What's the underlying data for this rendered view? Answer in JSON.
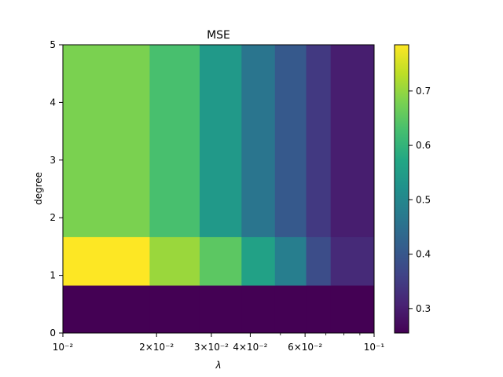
{
  "chart_data": {
    "type": "heatmap",
    "title": "MSE",
    "xlabel": "λ",
    "ylabel": "degree",
    "xscale": "log",
    "xlim": [
      0.01,
      0.1
    ],
    "ylim": [
      0,
      5
    ],
    "x_edges": [
      0.01,
      0.019,
      0.0275,
      0.0375,
      0.048,
      0.0605,
      0.0725,
      0.1
    ],
    "y_edges": [
      0,
      0.83,
      1.67,
      5
    ],
    "x_ticks": [
      {
        "value": 0.01,
        "label": "10⁻²"
      },
      {
        "value": 0.02,
        "label": "2×10⁻²"
      },
      {
        "value": 0.03,
        "label": "3×10⁻²"
      },
      {
        "value": 0.04,
        "label": "4×10⁻²"
      },
      {
        "value": 0.06,
        "label": "6×10⁻²"
      },
      {
        "value": 0.1,
        "label": "10⁻¹"
      }
    ],
    "x_minor_ticks": [
      0.05,
      0.07,
      0.08,
      0.09
    ],
    "y_ticks": [
      0,
      1,
      2,
      3,
      4,
      5
    ],
    "values": [
      [
        0.255,
        0.255,
        0.255,
        0.255,
        0.255,
        0.255,
        0.255
      ],
      [
        0.785,
        0.705,
        0.65,
        0.56,
        0.48,
        0.38,
        0.32
      ],
      [
        0.68,
        0.63,
        0.54,
        0.46,
        0.405,
        0.345,
        0.3
      ]
    ],
    "colorbar": {
      "vmin": 0.255,
      "vmax": 0.785,
      "ticks": [
        0.3,
        0.4,
        0.5,
        0.6,
        0.7
      ],
      "tick_labels": [
        "0.3",
        "0.4",
        "0.5",
        "0.6",
        "0.7"
      ],
      "colormap": "viridis"
    },
    "background_cell_color": "#440154"
  }
}
